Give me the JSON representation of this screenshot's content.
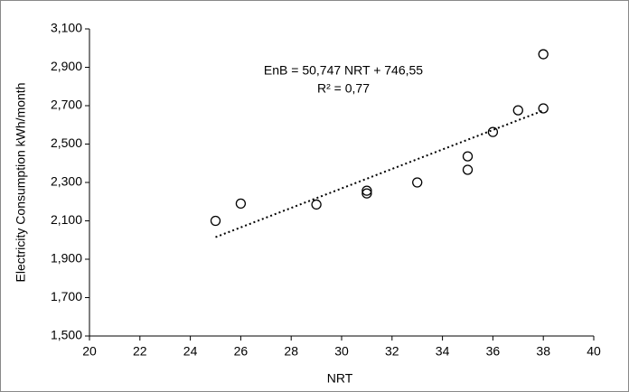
{
  "chart_data": {
    "type": "scatter",
    "x_label": "NRT",
    "y_label": "Electricity Consumption kWh/month",
    "annotations": [
      "EnB = 50,747 NRT + 746,55",
      "R² = 0,77"
    ],
    "series": [
      {
        "color": "#000000",
        "x": [
          25,
          26,
          29,
          31,
          31,
          33,
          35,
          35,
          36,
          37,
          38,
          38
        ],
        "values": [
          2100,
          2190,
          2185,
          2257,
          2243,
          2300,
          2436,
          2366,
          2563,
          2676,
          2686,
          2968
        ]
      }
    ],
    "trendline": {
      "x": [
        25,
        38
      ],
      "values": [
        2015,
        2675
      ],
      "color": "#000000"
    },
    "xlim": [
      20,
      40
    ],
    "xticks": [
      20,
      22,
      24,
      26,
      28,
      30,
      32,
      34,
      36,
      38,
      40
    ],
    "ylim": [
      1500,
      3100
    ],
    "yticks": [
      {
        "value": 1500,
        "label": "1,500"
      },
      {
        "value": 1700,
        "label": "1,700"
      },
      {
        "value": 1900,
        "label": "1,900"
      },
      {
        "value": 2100,
        "label": "2,100"
      },
      {
        "value": 2300,
        "label": "2,300"
      },
      {
        "value": 2500,
        "label": "2,500"
      },
      {
        "value": 2700,
        "label": "2,700"
      },
      {
        "value": 2900,
        "label": "2,900"
      },
      {
        "value": 3100,
        "label": "3,100"
      }
    ]
  }
}
